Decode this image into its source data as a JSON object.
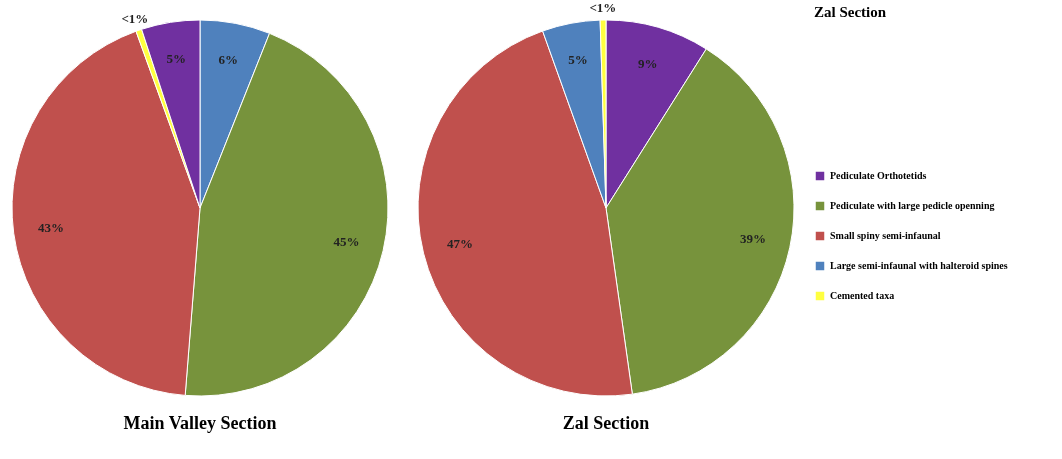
{
  "chart_data": [
    {
      "type": "pie",
      "title": "Main Valley Section",
      "categories": [
        null,
        null,
        null,
        null,
        null
      ],
      "values": [
        6,
        45,
        43,
        0.5,
        5
      ],
      "colors": [
        "#4f81bd",
        "#77933c",
        "#c0504d",
        "#ffff40",
        "#7030a0"
      ],
      "value_labels": [
        "6%",
        "45%",
        "43%",
        "<1%",
        "5%"
      ],
      "legend": false
    },
    {
      "type": "pie",
      "title": "Zal Section",
      "legend_title": "Zal Section",
      "categories": [
        "Pediculate Orthotetids",
        "Pediculate with large pedicle openning",
        "Small spiny semi-infaunal",
        "Large semi-infaunal with halteroid spines",
        "Cemented taxa"
      ],
      "values": [
        9,
        39,
        47,
        5,
        0.5
      ],
      "colors": [
        "#7030a0",
        "#77933c",
        "#c0504d",
        "#4f81bd",
        "#ffff40"
      ],
      "value_labels": [
        "9%",
        "39%",
        "47%",
        "5%",
        "<1%"
      ],
      "legend": "right"
    }
  ]
}
